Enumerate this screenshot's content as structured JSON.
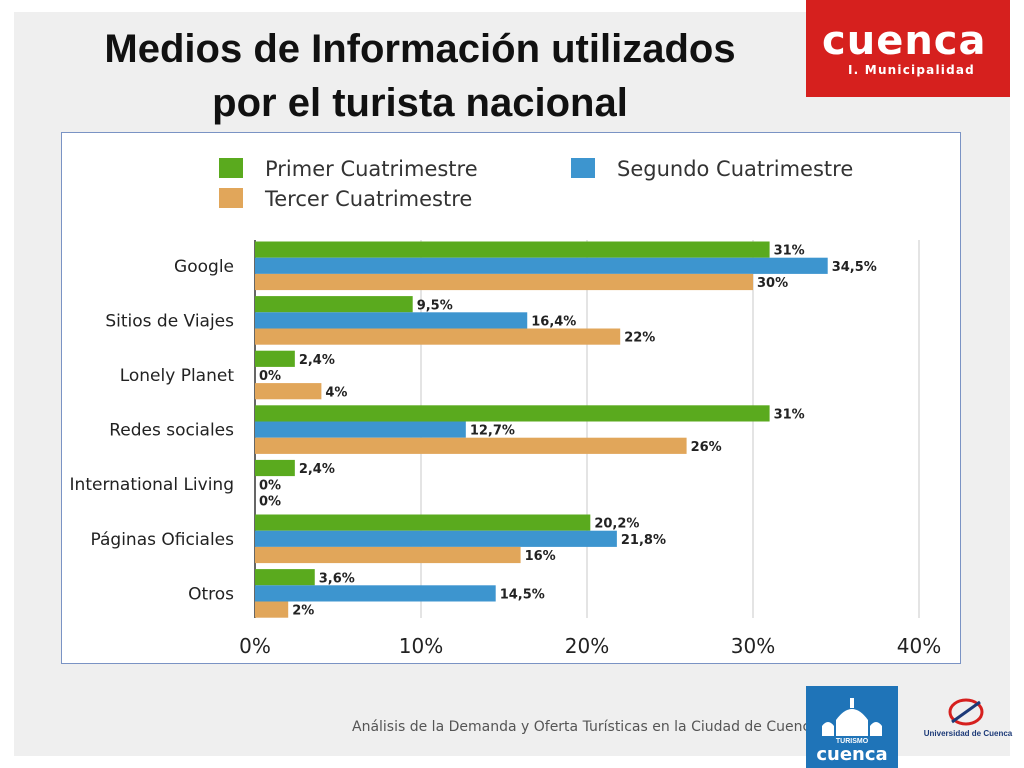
{
  "slide": {
    "title_line1": "Medios de Información utilizados",
    "title_line2": "por el turista nacional",
    "footer_text": "Análisis de la Demanda y Oferta Turísticas en la Ciudad de Cuenca"
  },
  "logos": {
    "municipal_name": "cuenca",
    "municipal_sub": "I. Municipalidad",
    "municipal_bg": "#d6201e",
    "turismo_small": "TURISMO",
    "turismo_big": "cuenca",
    "turismo_bg": "#1f74b8",
    "university": "Universidad de Cuenca"
  },
  "chart_data": {
    "type": "bar",
    "orientation": "horizontal",
    "categories": [
      "Google",
      "Sitios de Viajes",
      "Lonely Planet",
      "Redes sociales",
      "International Living",
      "Páginas Oficiales",
      "Otros"
    ],
    "series": [
      {
        "name": "Primer Cuatrimestre",
        "color": "#5aaa1e",
        "values": [
          31,
          9.5,
          2.4,
          31,
          2.4,
          20.2,
          3.6
        ],
        "labels": [
          "31%",
          "9,5%",
          "2,4%",
          "31%",
          "2,4%",
          "20,2%",
          "3,6%"
        ]
      },
      {
        "name": "Segundo Cuatrimestre",
        "color": "#3d95cf",
        "values": [
          34.5,
          16.4,
          0,
          12.7,
          0,
          21.8,
          14.5
        ],
        "labels": [
          "34,5%",
          "16,4%",
          "0%",
          "12,7%",
          "0%",
          "21,8%",
          "14,5%"
        ]
      },
      {
        "name": "Tercer Cuatrimestre",
        "color": "#e1a65a",
        "values": [
          30,
          22,
          4,
          26,
          0,
          16,
          2
        ],
        "labels": [
          "30%",
          "22%",
          "4%",
          "26%",
          "0%",
          "16%",
          "2%"
        ]
      }
    ],
    "xlim": [
      0,
      40
    ],
    "xticks": [
      "0%",
      "10%",
      "20%",
      "30%",
      "40%"
    ],
    "grid": true,
    "legend_position": "top"
  }
}
